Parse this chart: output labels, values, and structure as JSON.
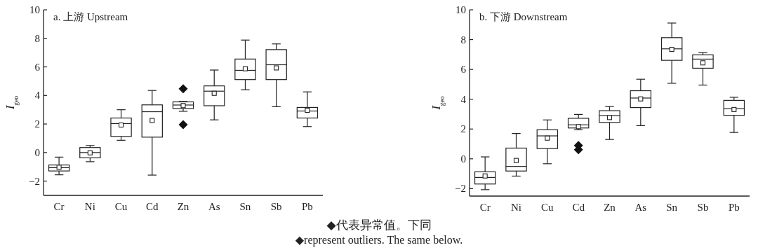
{
  "chart_data": [
    {
      "type": "box",
      "title": "a. 上游 Upstream",
      "ylabel": "I$_{geo}$",
      "categories": [
        "Cr",
        "Ni",
        "Cu",
        "Cd",
        "Zn",
        "As",
        "Sn",
        "Sb",
        "Pb"
      ],
      "ylim": [
        -3,
        10
      ],
      "yticks": [
        -2,
        0,
        2,
        4,
        6,
        8,
        10
      ],
      "boxes": [
        {
          "low": -1.56,
          "q1": -1.29,
          "median": -1.06,
          "q3": -0.87,
          "high": -0.32,
          "mean": -1.03
        },
        {
          "low": -0.64,
          "q1": -0.37,
          "median": 0,
          "q3": 0.35,
          "high": 0.49,
          "mean": -0.02
        },
        {
          "low": 0.86,
          "q1": 1.13,
          "median": 2.03,
          "q3": 2.42,
          "high": 3.0,
          "mean": 1.93
        },
        {
          "low": -1.58,
          "q1": 1.08,
          "median": 2.86,
          "q3": 3.34,
          "high": 4.35,
          "mean": 2.25
        },
        {
          "low": 2.89,
          "q1": 3.08,
          "median": 3.33,
          "q3": 3.55,
          "high": 3.58,
          "mean": 3.29,
          "outliers": [
            4.47,
            1.95
          ]
        },
        {
          "low": 2.29,
          "q1": 3.28,
          "median": 4.3,
          "q3": 4.67,
          "high": 5.78,
          "mean": 4.15
        },
        {
          "low": 4.4,
          "q1": 5.11,
          "median": 5.76,
          "q3": 6.55,
          "high": 7.88,
          "mean": 5.87
        },
        {
          "low": 3.21,
          "q1": 5.11,
          "median": 6.15,
          "q3": 7.21,
          "high": 7.61,
          "mean": 5.93
        },
        {
          "low": 1.82,
          "q1": 2.42,
          "median": 2.91,
          "q3": 3.16,
          "high": 4.25,
          "mean": 2.96
        }
      ],
      "annotations": [
        "◆代表异常值。下同",
        "◆represent outliers. The same below."
      ]
    },
    {
      "type": "box",
      "title": "b. 下游 Downstream",
      "ylabel": "I$_{geo}$",
      "categories": [
        "Cr",
        "Ni",
        "Cu",
        "Cd",
        "Zn",
        "As",
        "Sn",
        "Sb",
        "Pb"
      ],
      "ylim": [
        -2.5,
        10
      ],
      "yticks": [
        -2,
        0,
        2,
        4,
        6,
        8,
        10
      ],
      "boxes": [
        {
          "low": -2.07,
          "q1": -1.69,
          "median": -1.25,
          "q3": -0.87,
          "high": 0.13,
          "mean": -1.15
        },
        {
          "low": -1.16,
          "q1": -0.82,
          "median": -0.51,
          "q3": 0.72,
          "high": 1.7,
          "mean": -0.11
        },
        {
          "low": -0.33,
          "q1": 0.69,
          "median": 1.54,
          "q3": 1.95,
          "high": 2.61,
          "mean": 1.39
        },
        {
          "low": 1.95,
          "q1": 2.07,
          "median": 2.28,
          "q3": 2.72,
          "high": 2.98,
          "mean": 2.16,
          "outliers": [
            0.89,
            0.61
          ]
        },
        {
          "low": 1.3,
          "q1": 2.44,
          "median": 2.9,
          "q3": 3.23,
          "high": 3.51,
          "mean": 2.77
        },
        {
          "low": 2.23,
          "q1": 3.44,
          "median": 4.08,
          "q3": 4.57,
          "high": 5.34,
          "mean": 4.02
        },
        {
          "low": 5.07,
          "q1": 6.61,
          "median": 7.38,
          "q3": 8.13,
          "high": 9.11,
          "mean": 7.34
        },
        {
          "low": 4.95,
          "q1": 6.08,
          "median": 6.69,
          "q3": 6.98,
          "high": 7.13,
          "mean": 6.44
        },
        {
          "low": 1.77,
          "q1": 2.92,
          "median": 3.36,
          "q3": 3.92,
          "high": 4.13,
          "mean": 3.31
        }
      ]
    }
  ]
}
